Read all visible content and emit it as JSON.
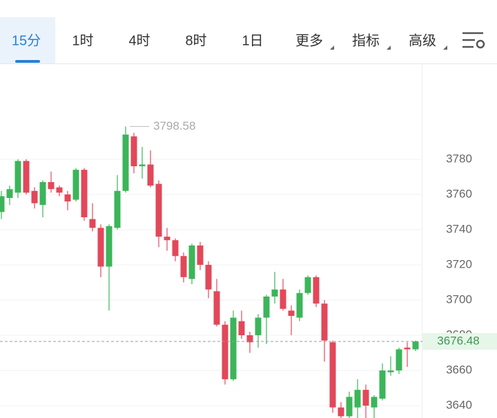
{
  "tabs": [
    "15分",
    "1时",
    "4时",
    "8时",
    "1日",
    "更多",
    "指标",
    "高级"
  ],
  "chart_data": {
    "type": "candlestick",
    "open": [
      3750,
      3758,
      3761,
      3779,
      3762,
      3754,
      3767,
      3764,
      3760,
      3757,
      3774,
      3746,
      3741,
      3719,
      3741,
      3762,
      3793,
      3776,
      3777,
      3766,
      3736,
      3734,
      3725,
      3712,
      3731,
      3720,
      3705,
      3686,
      3655,
      3688,
      3680,
      3680,
      3690,
      3702,
      3706,
      3694,
      3690,
      3704,
      3713,
      3698,
      3676,
      3639,
      3634,
      3639,
      3649,
      3639,
      3644,
      3659,
      3660,
      3673,
      3672
    ],
    "high": [
      3762,
      3765,
      3780,
      3780,
      3764,
      3768,
      3773,
      3765,
      3762,
      3775,
      3775,
      3755,
      3743,
      3743,
      3771,
      3798.58,
      3795,
      3787,
      3785,
      3768,
      3741,
      3735,
      3727,
      3732,
      3733,
      3722,
      3712,
      3688,
      3694,
      3694,
      3682,
      3692,
      3703,
      3716,
      3712,
      3697,
      3706,
      3714,
      3714,
      3700,
      3677,
      3642,
      3648,
      3655,
      3652,
      3646,
      3664,
      3668,
      3673,
      3676,
      3677
    ],
    "low": [
      3746,
      3754,
      3758,
      3760,
      3752,
      3747,
      3761,
      3759,
      3751,
      3756,
      3745,
      3739,
      3713,
      3694,
      3740,
      3761,
      3772,
      3769,
      3764,
      3730,
      3728,
      3722,
      3710,
      3709,
      3717,
      3701,
      3685,
      3652,
      3654,
      3678,
      3670,
      3673,
      3675,
      3698,
      3694,
      3680,
      3688,
      3703,
      3696,
      3665,
      3636,
      3633,
      3633,
      3633,
      3633,
      3633,
      3643,
      3657,
      3658,
      3662,
      3671
    ],
    "close": [
      3759,
      3763,
      3779,
      3761,
      3755,
      3767,
      3763,
      3761,
      3756,
      3774,
      3747,
      3741,
      3719,
      3742,
      3762,
      3794,
      3776,
      3777,
      3765,
      3736,
      3734,
      3725,
      3713,
      3731,
      3720,
      3706,
      3686,
      3655,
      3690,
      3680,
      3676,
      3690,
      3702,
      3706,
      3695,
      3691,
      3704,
      3713,
      3698,
      3677,
      3639,
      3634,
      3645,
      3649,
      3640,
      3645,
      3660,
      3660,
      3672,
      3672,
      3676.48
    ],
    "up_color": "#3cb55a",
    "down_color": "#e2485a",
    "ylim": [
      3633,
      3834
    ],
    "yticks": [
      3640,
      3660,
      3680,
      3700,
      3720,
      3740,
      3760,
      3780
    ],
    "grid": true
  }
}
